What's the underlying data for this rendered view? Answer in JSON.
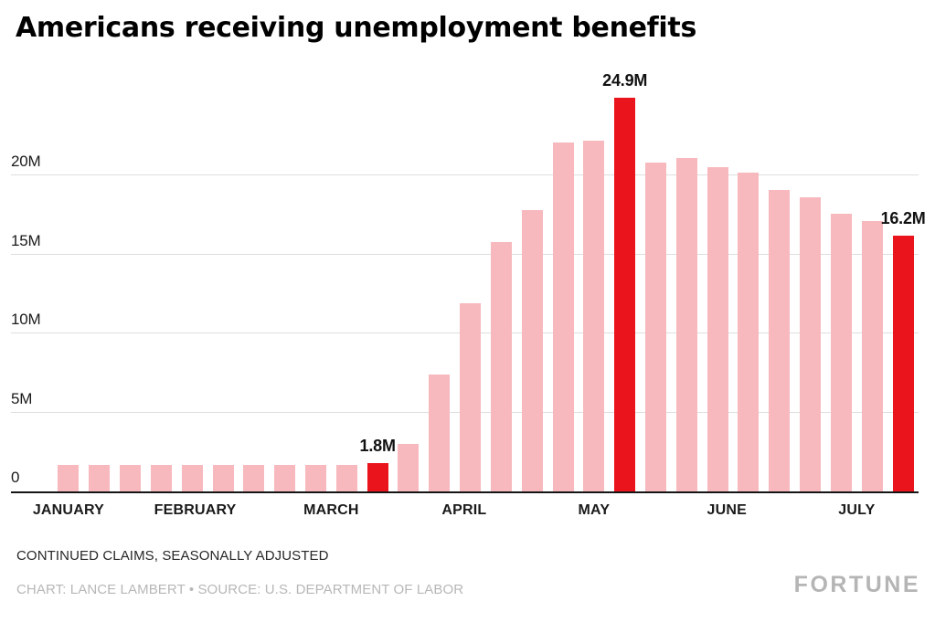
{
  "title": "Americans receiving unemployment benefits",
  "footer": {
    "subtitle": "CONTINUED CLAIMS, SEASONALLY ADJUSTED",
    "credit": "CHART: LANCE LAMBERT • SOURCE: U.S. DEPARTMENT OF LABOR",
    "brand": "FORTUNE"
  },
  "colors": {
    "bar": "#f7b9be",
    "highlight": "#ea141d",
    "grid": "#dedede",
    "axis": "#151515",
    "label": "#1a1a1a",
    "muted": "#b7b7b7"
  },
  "chart_data": {
    "type": "bar",
    "title": "Americans receiving unemployment benefits",
    "subtitle": "CONTINUED CLAIMS, SEASONALLY ADJUSTED",
    "source": "U.S. DEPARTMENT OF LABOR",
    "unit": "millions of people",
    "ylim": [
      0,
      26
    ],
    "grid": true,
    "legend": "none",
    "yticks": [
      {
        "value": 0,
        "label": "0"
      },
      {
        "value": 5,
        "label": "5M"
      },
      {
        "value": 10,
        "label": "10M"
      },
      {
        "value": 15,
        "label": "15M"
      },
      {
        "value": 20,
        "label": "20M"
      }
    ],
    "month_ticks": [
      {
        "label": "JANUARY",
        "pos": 0
      },
      {
        "label": "FEBRUARY",
        "pos": 4.1
      },
      {
        "label": "MARCH",
        "pos": 8.5
      },
      {
        "label": "APRIL",
        "pos": 12.8
      },
      {
        "label": "MAY",
        "pos": 17
      },
      {
        "label": "JUNE",
        "pos": 21.3
      },
      {
        "label": "JULY",
        "pos": 25.5
      }
    ],
    "bars": [
      {
        "value": 1.7,
        "highlight": false
      },
      {
        "value": 1.7,
        "highlight": false
      },
      {
        "value": 1.7,
        "highlight": false
      },
      {
        "value": 1.7,
        "highlight": false
      },
      {
        "value": 1.7,
        "highlight": false
      },
      {
        "value": 1.7,
        "highlight": false
      },
      {
        "value": 1.7,
        "highlight": false
      },
      {
        "value": 1.7,
        "highlight": false
      },
      {
        "value": 1.7,
        "highlight": false
      },
      {
        "value": 1.7,
        "highlight": false
      },
      {
        "value": 1.8,
        "highlight": true,
        "label": "1.8M"
      },
      {
        "value": 3.0,
        "highlight": false
      },
      {
        "value": 7.4,
        "highlight": false
      },
      {
        "value": 11.9,
        "highlight": false
      },
      {
        "value": 15.8,
        "highlight": false
      },
      {
        "value": 17.8,
        "highlight": false
      },
      {
        "value": 22.1,
        "highlight": false
      },
      {
        "value": 22.2,
        "highlight": false
      },
      {
        "value": 24.9,
        "highlight": true,
        "label": "24.9M"
      },
      {
        "value": 20.8,
        "highlight": false
      },
      {
        "value": 21.1,
        "highlight": false
      },
      {
        "value": 20.5,
        "highlight": false
      },
      {
        "value": 20.2,
        "highlight": false
      },
      {
        "value": 19.1,
        "highlight": false
      },
      {
        "value": 18.6,
        "highlight": false
      },
      {
        "value": 17.6,
        "highlight": false
      },
      {
        "value": 17.1,
        "highlight": false
      },
      {
        "value": 16.2,
        "highlight": true,
        "label": "16.2M"
      }
    ]
  }
}
